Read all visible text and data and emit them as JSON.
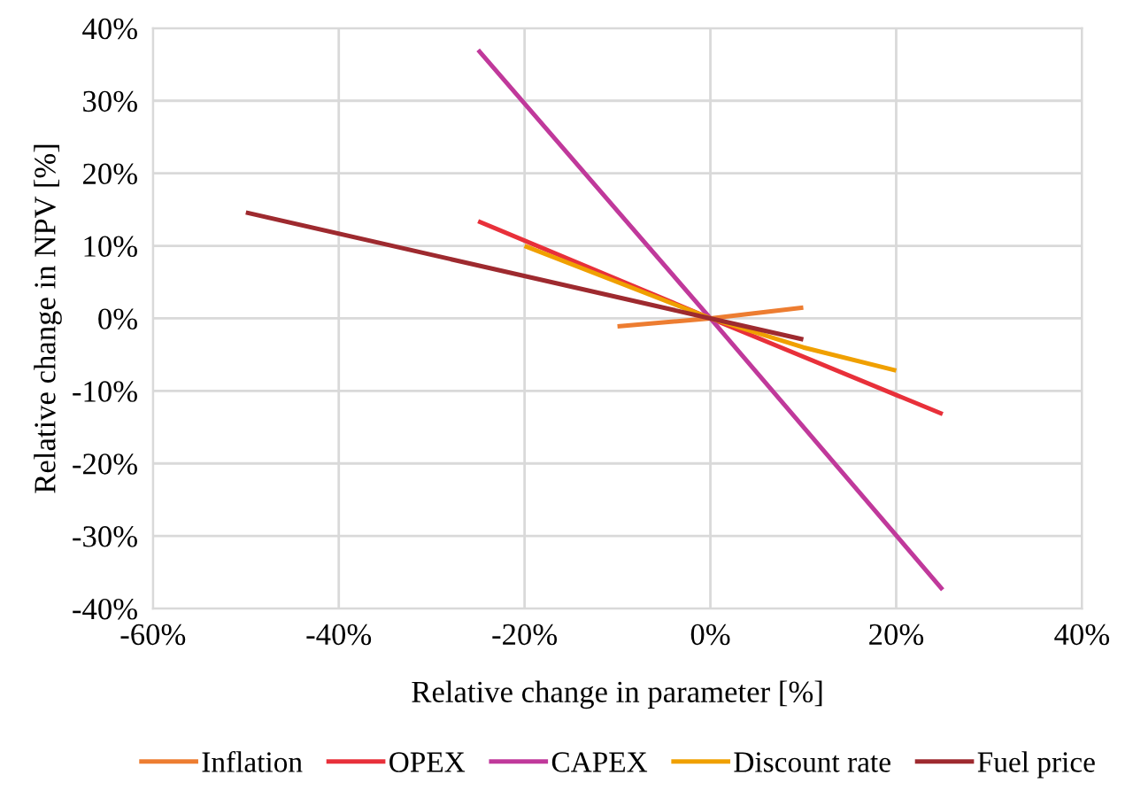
{
  "chart_data": {
    "type": "line",
    "xlabel": "Relative change in parameter [%]",
    "ylabel": "Relative change in NPV [%]",
    "series": [
      {
        "name": "Inflation",
        "color": "#ed7d31",
        "x": [
          -10,
          0,
          10
        ],
        "values": [
          -1.1,
          0,
          1.5
        ]
      },
      {
        "name": "OPEX",
        "color": "#e8303a",
        "x": [
          -25,
          0,
          25
        ],
        "values": [
          13.4,
          0,
          -13.2
        ]
      },
      {
        "name": "CAPEX",
        "color": "#c0399b",
        "x": [
          -25,
          0,
          25
        ],
        "values": [
          37,
          0,
          -37.4
        ]
      },
      {
        "name": "Discount rate",
        "color": "#f0a000",
        "x": [
          -20,
          -10,
          0,
          10,
          20
        ],
        "values": [
          10,
          5,
          0,
          -4,
          -7.2
        ]
      },
      {
        "name": "Fuel price",
        "color": "#9e2a2f",
        "x": [
          -50,
          0,
          10
        ],
        "values": [
          14.6,
          0,
          -2.9
        ]
      }
    ],
    "xlim": [
      -60,
      40
    ],
    "xticks": [
      {
        "value": -60,
        "label": "-60%"
      },
      {
        "value": -40,
        "label": "-40%"
      },
      {
        "value": -20,
        "label": "-20%"
      },
      {
        "value": 0,
        "label": "0%"
      },
      {
        "value": 20,
        "label": "20%"
      },
      {
        "value": 40,
        "label": "40%"
      }
    ],
    "ylim": [
      -40,
      40
    ],
    "yticks": [
      {
        "value": -40,
        "label": "-40%"
      },
      {
        "value": -30,
        "label": "-30%"
      },
      {
        "value": -20,
        "label": "-20%"
      },
      {
        "value": -10,
        "label": "-10%"
      },
      {
        "value": 0,
        "label": "0%"
      },
      {
        "value": 10,
        "label": "10%"
      },
      {
        "value": 20,
        "label": "20%"
      },
      {
        "value": 30,
        "label": "30%"
      },
      {
        "value": 40,
        "label": "40%"
      }
    ],
    "grid": true,
    "legend": "bottom",
    "marker": "none",
    "line_style": "solid"
  }
}
